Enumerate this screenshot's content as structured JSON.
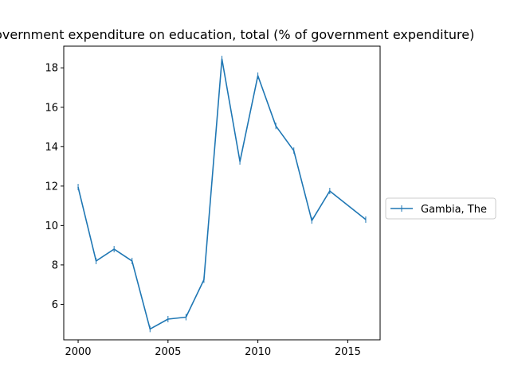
{
  "chart_data": {
    "type": "line",
    "title": "Government expenditure on education, total (% of government expenditure)",
    "xlabel": "",
    "ylabel": "",
    "xlim": [
      1999.2,
      2016.8
    ],
    "ylim": [
      4.2,
      19.1
    ],
    "x_ticks": [
      2000,
      2005,
      2010,
      2015
    ],
    "y_ticks": [
      6,
      8,
      10,
      12,
      14,
      16,
      18
    ],
    "grid": false,
    "legend_position": "outside-right",
    "series": [
      {
        "name": "Gambia, The",
        "color": "#1f77b4",
        "x": [
          2000,
          2001,
          2002,
          2003,
          2004,
          2005,
          2006,
          2007,
          2008,
          2009,
          2010,
          2011,
          2012,
          2013,
          2014,
          2016
        ],
        "y": [
          11.95,
          8.2,
          8.8,
          8.2,
          4.75,
          5.25,
          5.35,
          7.25,
          18.45,
          13.25,
          17.6,
          15.05,
          13.8,
          10.25,
          11.75,
          10.3
        ]
      }
    ]
  }
}
